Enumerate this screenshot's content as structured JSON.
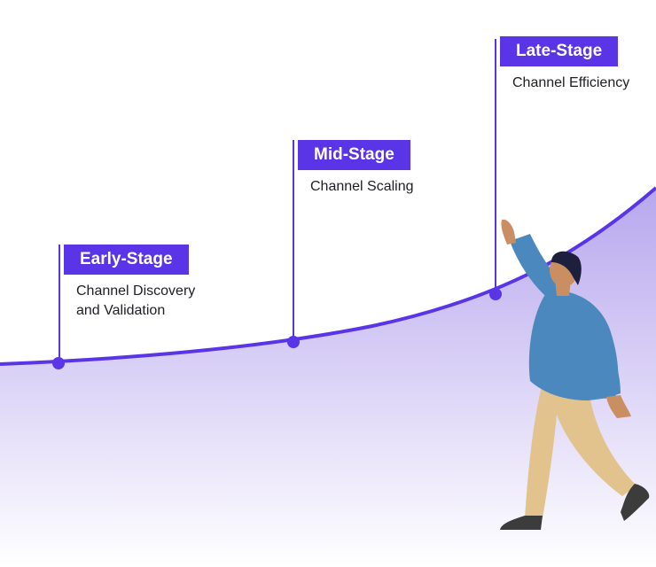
{
  "colors": {
    "accent": "#5a35e8",
    "curve": "#5a35e8",
    "fill_top": "#b7a7ee",
    "fill_bottom": "#ffffff",
    "shirt": "#4a88bd",
    "pants": "#e2c38d",
    "skin": "#c98e62",
    "hair": "#1e1f3c",
    "shoe": "#3c3c3c"
  },
  "stages": [
    {
      "label": "Early-Stage",
      "description": "Channel Discovery\nand Validation"
    },
    {
      "label": "Mid-Stage",
      "description": "Channel Scaling"
    },
    {
      "label": "Late-Stage",
      "description": "Channel Efficiency"
    }
  ],
  "illustration": {
    "subject": "person-reaching-up"
  }
}
